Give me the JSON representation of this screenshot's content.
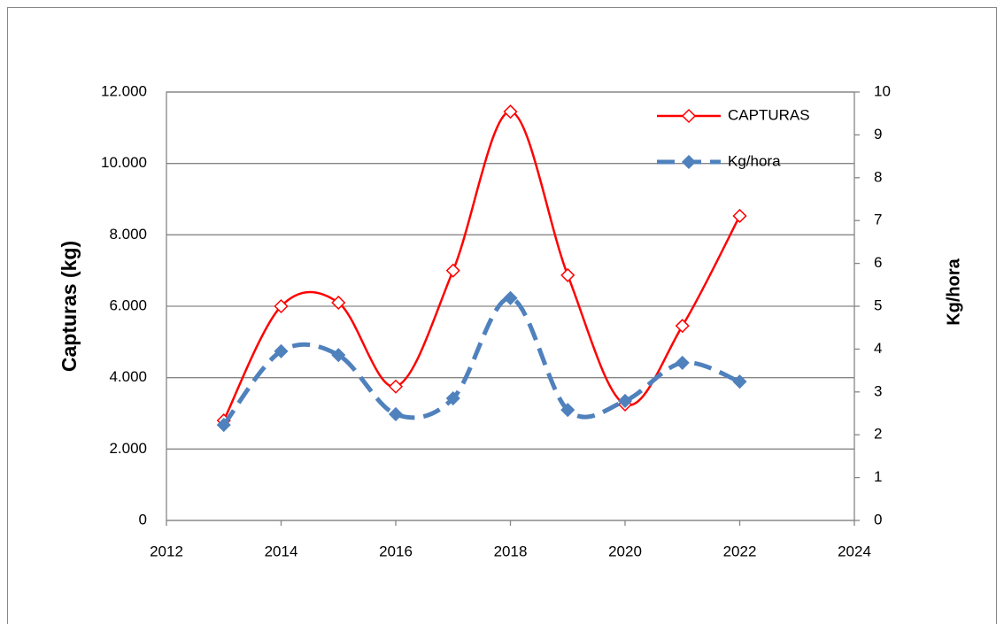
{
  "chart_data": {
    "type": "line",
    "x": [
      2013,
      2014,
      2015,
      2016,
      2017,
      2018,
      2019,
      2020,
      2021,
      2022
    ],
    "series": [
      {
        "name": "CAPTURAS",
        "color": "#ff0000",
        "values": [
          2800,
          6000,
          6100,
          3750,
          7000,
          11450,
          6870,
          3250,
          5450,
          8530
        ]
      },
      {
        "name": "Kg/hora",
        "color": "#4f81bd",
        "axis": "y2",
        "values": [
          2.23,
          3.95,
          3.86,
          2.48,
          2.85,
          5.19,
          2.58,
          2.79,
          3.68,
          3.24
        ]
      }
    ],
    "xlim": [
      2012,
      2024
    ],
    "xticks": [
      2012,
      2014,
      2016,
      2018,
      2020,
      2022,
      2024
    ],
    "ylim": [
      0,
      12000
    ],
    "yticks": [
      0,
      {
        "value": 2000,
        "label": "2.000"
      },
      {
        "value": 4000,
        "label": "4.000"
      },
      {
        "value": 6000,
        "label": "6.000"
      },
      {
        "value": 8000,
        "label": "8.000"
      },
      {
        "value": 10000,
        "label": "10.000"
      },
      {
        "value": 12000,
        "label": "12.000"
      }
    ],
    "y2lim": [
      0,
      10
    ],
    "y2ticks": [
      0,
      1,
      2,
      3,
      4,
      5,
      6,
      7,
      8,
      9,
      10
    ],
    "ylabel": "Capturas (kg)",
    "y2label": "Kg/hora",
    "grid": true,
    "legend": "upper-right"
  }
}
